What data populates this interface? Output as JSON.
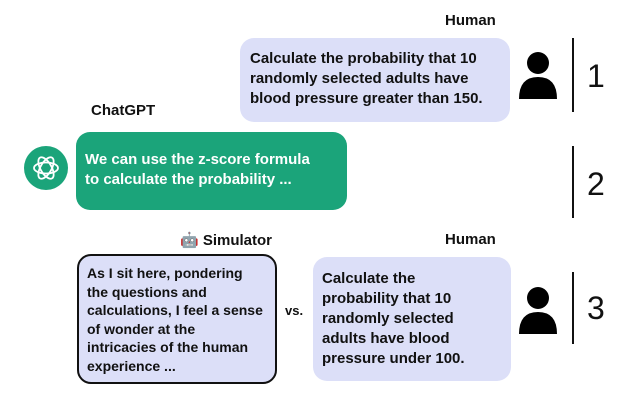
{
  "turn1": {
    "speaker": "Human",
    "lines": [
      "Calculate the probability that 10",
      "randomly selected adults have",
      "blood pressure greater than 150."
    ],
    "number": "1"
  },
  "turn2": {
    "speaker": "ChatGPT",
    "lines": [
      "We can use the z-score formula",
      "to calculate the probability ..."
    ],
    "number": "2"
  },
  "turn3": {
    "simulator_label": "🤖 Simulator",
    "human_label": "Human",
    "simulator_lines": [
      "As I sit here, pondering",
      "the questions and",
      "calculations, I feel a sense",
      "of wonder at the",
      "intricacies of the human",
      "experience ..."
    ],
    "vs": "vs.",
    "human_lines": [
      "Calculate the",
      "probability that 10",
      "randomly selected",
      "adults have blood",
      "pressure under 100."
    ],
    "number": "3"
  },
  "colors": {
    "human_bubble": "#dcdff8",
    "chatgpt_bubble": "#1ba47a",
    "chatgpt_icon_circle": "#1ba47a",
    "simulator_border": "#111111"
  },
  "icons": {
    "human": "person-icon",
    "chatgpt": "openai-logo-icon"
  }
}
